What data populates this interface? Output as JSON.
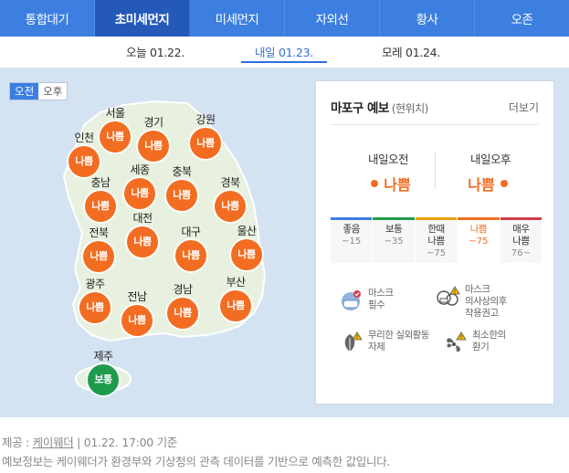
{
  "category_tabs": [
    {
      "label": "통합대기",
      "active": false
    },
    {
      "label": "초미세먼지",
      "active": true
    },
    {
      "label": "미세먼지",
      "active": false
    },
    {
      "label": "자외선",
      "active": false
    },
    {
      "label": "황사",
      "active": false
    },
    {
      "label": "오존",
      "active": false
    }
  ],
  "day_tabs": [
    {
      "label": "오늘 01.22.",
      "active": false
    },
    {
      "label": "내일 01.23.",
      "active": true
    },
    {
      "label": "모레 01.24.",
      "active": false
    }
  ],
  "ampm_toggle": {
    "am": "오전",
    "pm": "오후",
    "selected": "오전"
  },
  "regions": [
    {
      "name": "서울",
      "status": "나쁨"
    },
    {
      "name": "경기",
      "status": "나쁨"
    },
    {
      "name": "강원",
      "status": "나쁨"
    },
    {
      "name": "인천",
      "status": "나쁨"
    },
    {
      "name": "세종",
      "status": "나쁨"
    },
    {
      "name": "충북",
      "status": "나쁨"
    },
    {
      "name": "충남",
      "status": "나쁨"
    },
    {
      "name": "경북",
      "status": "나쁨"
    },
    {
      "name": "대전",
      "status": "나쁨"
    },
    {
      "name": "전북",
      "status": "나쁨"
    },
    {
      "name": "대구",
      "status": "나쁨"
    },
    {
      "name": "울산",
      "status": "나쁨"
    },
    {
      "name": "광주",
      "status": "나쁨"
    },
    {
      "name": "전남",
      "status": "나쁨"
    },
    {
      "name": "경남",
      "status": "나쁨"
    },
    {
      "name": "부산",
      "status": "나쁨"
    },
    {
      "name": "제주",
      "status": "보통"
    }
  ],
  "forecast": {
    "title": "마포구 예보",
    "location_note": "(현위치)",
    "more_label": "더보기",
    "am_label": "내일오전",
    "am_value": "나쁨",
    "pm_label": "내일오후",
    "pm_value": "나쁨",
    "scale": [
      {
        "name": "좋음",
        "range": "~15",
        "color": "#3a7ee0"
      },
      {
        "name": "보통",
        "range": "~35",
        "color": "#1f9b4e"
      },
      {
        "name": "한때",
        "name2": "나쁨",
        "range": "~75",
        "color": "#e8a012"
      },
      {
        "name": "나쁨",
        "range": "~75",
        "color": "#f26d21",
        "current": true
      },
      {
        "name": "매우",
        "name2": "나쁨",
        "range": "76~",
        "color": "#d43a4a"
      }
    ],
    "advice": [
      {
        "icon": "mask-icon",
        "line1": "마스크",
        "line2": "필수"
      },
      {
        "icon": "doctor-mask-icon",
        "line1": "마스크",
        "line2": "의사상의후",
        "line3": "착용권고"
      },
      {
        "icon": "outdoor-warning-icon",
        "line1": "무리한 실외활동",
        "line2": "자제"
      },
      {
        "icon": "ventilation-icon",
        "line1": "최소한의",
        "line2": "환기"
      }
    ]
  },
  "footer": {
    "provider_prefix": "제공 : ",
    "provider": "케이웨더",
    "timestamp": " | 01.22. 17:00 기준",
    "notice": "예보정보는 케이웨더가 환경부와 기상청의 관측 데이터를 기반으로 예측한 값입니다."
  },
  "colors": {
    "accent": "#3c7fe0",
    "bad": "#f26d21",
    "normal": "#1f9b4e",
    "land": "#e8f0e0"
  }
}
